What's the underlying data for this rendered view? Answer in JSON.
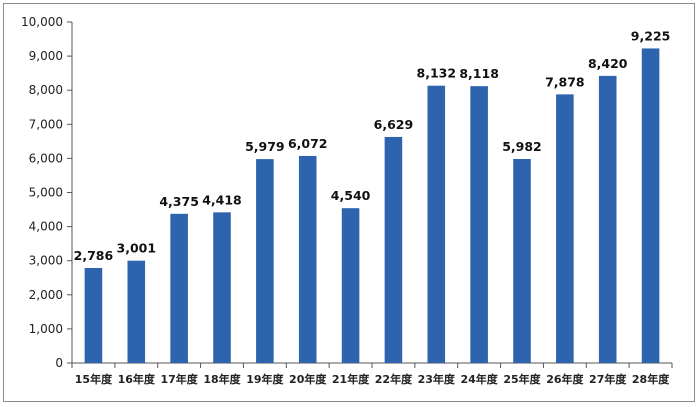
{
  "chart_data": {
    "type": "bar",
    "title": "",
    "xlabel": "",
    "ylabel": "",
    "ylim": [
      0,
      10000
    ],
    "yticks": [
      0,
      1000,
      2000,
      3000,
      4000,
      5000,
      6000,
      7000,
      8000,
      9000,
      10000
    ],
    "ytick_labels": [
      "0",
      "1,000",
      "2,000",
      "3,000",
      "4,000",
      "5,000",
      "6,000",
      "7,000",
      "8,000",
      "9,000",
      "10,000"
    ],
    "categories": [
      "15年度",
      "16年度",
      "17年度",
      "18年度",
      "19年度",
      "20年度",
      "21年度",
      "22年度",
      "23年度",
      "24年度",
      "25年度",
      "26年度",
      "27年度",
      "28年度"
    ],
    "values": [
      2786,
      3001,
      4375,
      4418,
      5979,
      6072,
      4540,
      6629,
      8132,
      8118,
      5982,
      7878,
      8420,
      9225
    ],
    "value_labels": [
      "2,786",
      "3,001",
      "4,375",
      "4,418",
      "5,979",
      "6,072",
      "4,540",
      "6,629",
      "8,132",
      "8,118",
      "5,982",
      "7,878",
      "8,420",
      "9,225"
    ],
    "bar_color": "#2e63ad",
    "grid": false,
    "legend": "none"
  }
}
